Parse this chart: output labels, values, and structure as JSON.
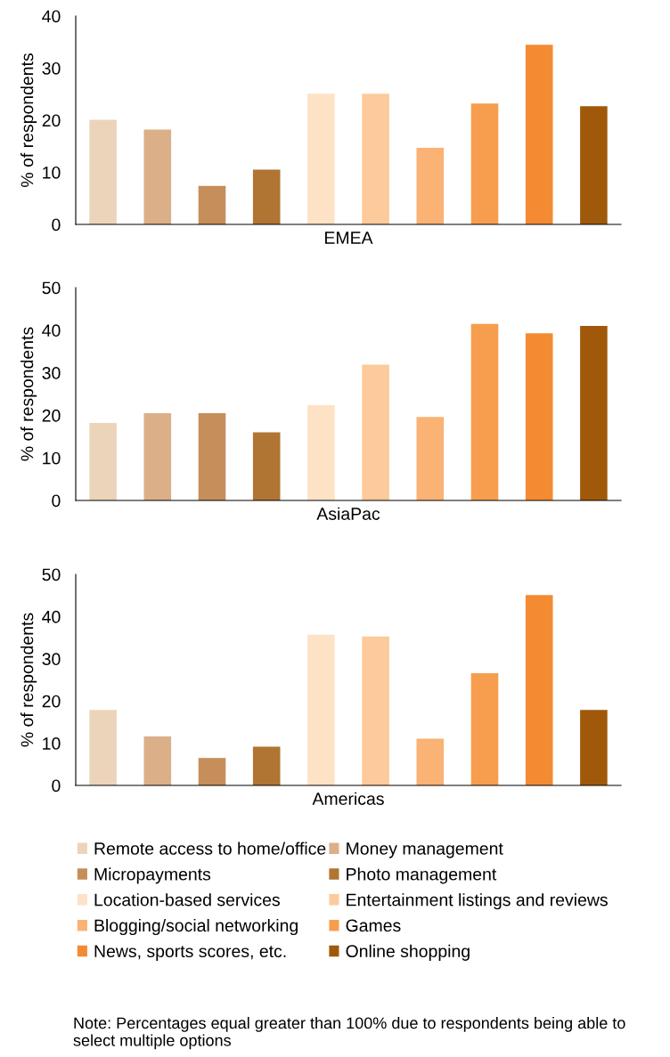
{
  "chart_data": [
    {
      "type": "bar",
      "xlabel": "EMEA",
      "ylabel": "% of respondents",
      "categories": [
        null
      ],
      "ylim": [
        0,
        40
      ],
      "yticks": [
        0,
        10,
        20,
        30,
        40
      ],
      "grid": false,
      "series": [
        {
          "color": "#ecd4bb",
          "values": [
            20.1
          ]
        },
        {
          "color": "#dbaf88",
          "values": [
            18.2
          ]
        },
        {
          "color": "#c68e5a",
          "values": [
            7.4
          ]
        },
        {
          "color": "#b07433",
          "values": [
            10.5
          ]
        },
        {
          "color": "#fde2c6",
          "values": [
            25.1
          ]
        },
        {
          "color": "#fdca9b",
          "values": [
            25.1
          ]
        },
        {
          "color": "#fab275",
          "values": [
            14.7
          ]
        },
        {
          "color": "#f79e4e",
          "values": [
            23.2
          ]
        },
        {
          "color": "#f48b33",
          "values": [
            34.5
          ]
        },
        {
          "color": "#a0590b",
          "values": [
            22.7
          ]
        }
      ]
    },
    {
      "type": "bar",
      "xlabel": "AsiaPac",
      "ylabel": "% of respondents",
      "categories": [
        null
      ],
      "ylim": [
        0,
        50
      ],
      "yticks": [
        0,
        10,
        20,
        30,
        40,
        50
      ],
      "grid": false,
      "series": [
        {
          "color": "#ecd4bb",
          "values": [
            18.2
          ]
        },
        {
          "color": "#dbaf88",
          "values": [
            20.5
          ]
        },
        {
          "color": "#c68e5a",
          "values": [
            20.5
          ]
        },
        {
          "color": "#b07433",
          "values": [
            16.0
          ]
        },
        {
          "color": "#fde2c6",
          "values": [
            22.4
          ]
        },
        {
          "color": "#fdca9b",
          "values": [
            31.9
          ]
        },
        {
          "color": "#fab275",
          "values": [
            19.6
          ]
        },
        {
          "color": "#f79e4e",
          "values": [
            41.5
          ]
        },
        {
          "color": "#f48b33",
          "values": [
            39.3
          ]
        },
        {
          "color": "#a0590b",
          "values": [
            41.0
          ]
        }
      ]
    },
    {
      "type": "bar",
      "xlabel": "Americas",
      "ylabel": "% of respondents",
      "categories": [
        null
      ],
      "ylim": [
        0,
        50
      ],
      "yticks": [
        0,
        10,
        20,
        30,
        40,
        50
      ],
      "grid": false,
      "legend": "bottom",
      "annotations": [
        "Note: Percentages equal greater than 100% due to respondents being able to select multiple options"
      ],
      "series": [
        {
          "name": "Remote access to home/office",
          "color": "#ecd4bb",
          "values": [
            17.9
          ]
        },
        {
          "name": "Money management",
          "color": "#dbaf88",
          "values": [
            11.6
          ]
        },
        {
          "name": "Micropayments",
          "color": "#c68e5a",
          "values": [
            6.5
          ]
        },
        {
          "name": "Photo management",
          "color": "#b07433",
          "values": [
            9.2
          ]
        },
        {
          "name": "Location-based services",
          "color": "#fde2c6",
          "values": [
            35.7
          ]
        },
        {
          "name": "Entertainment listings and reviews",
          "color": "#fdca9b",
          "values": [
            35.3
          ]
        },
        {
          "name": "Blogging/social networking",
          "color": "#fab275",
          "values": [
            11.1
          ]
        },
        {
          "name": "Games",
          "color": "#f79e4e",
          "values": [
            26.6
          ]
        },
        {
          "name": "News, sports scores, etc.",
          "color": "#f48b33",
          "values": [
            45.1
          ]
        },
        {
          "name": "Online shopping",
          "color": "#a0590b",
          "values": [
            17.9
          ]
        }
      ]
    }
  ]
}
